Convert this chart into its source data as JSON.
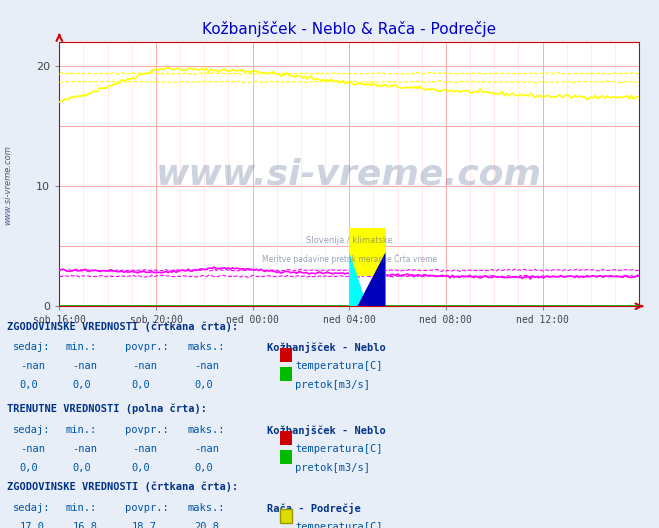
{
  "title": "Kožbanjšček - Neblo & Rača - Podrečje",
  "title_color": "#0000cc",
  "plot_bg_color": "#ffffff",
  "table_bg": "#e8eef8",
  "table_text_color": "#0055aa",
  "table_header_color": "#003388",
  "watermark_text": "www.si-vreme.com",
  "watermark_color": "#1a3a6e",
  "x_tick_labels": [
    "sob 16:00",
    "sob 20:00",
    "ned 00:00",
    "ned 04:00",
    "ned 08:00",
    "ned 12:00"
  ],
  "x_tick_positions": [
    0,
    48,
    96,
    144,
    192,
    240
  ],
  "y_ticks": [
    0,
    10,
    20
  ],
  "ylim": [
    0,
    22
  ],
  "xlim": [
    0,
    288
  ],
  "n_points": 289,
  "raca_temp_color": "#ffff00",
  "raca_pretok_color": "#ff00ff",
  "kozb_temp_color": "#cc0000",
  "kozb_pretok_color": "#00bb00"
}
